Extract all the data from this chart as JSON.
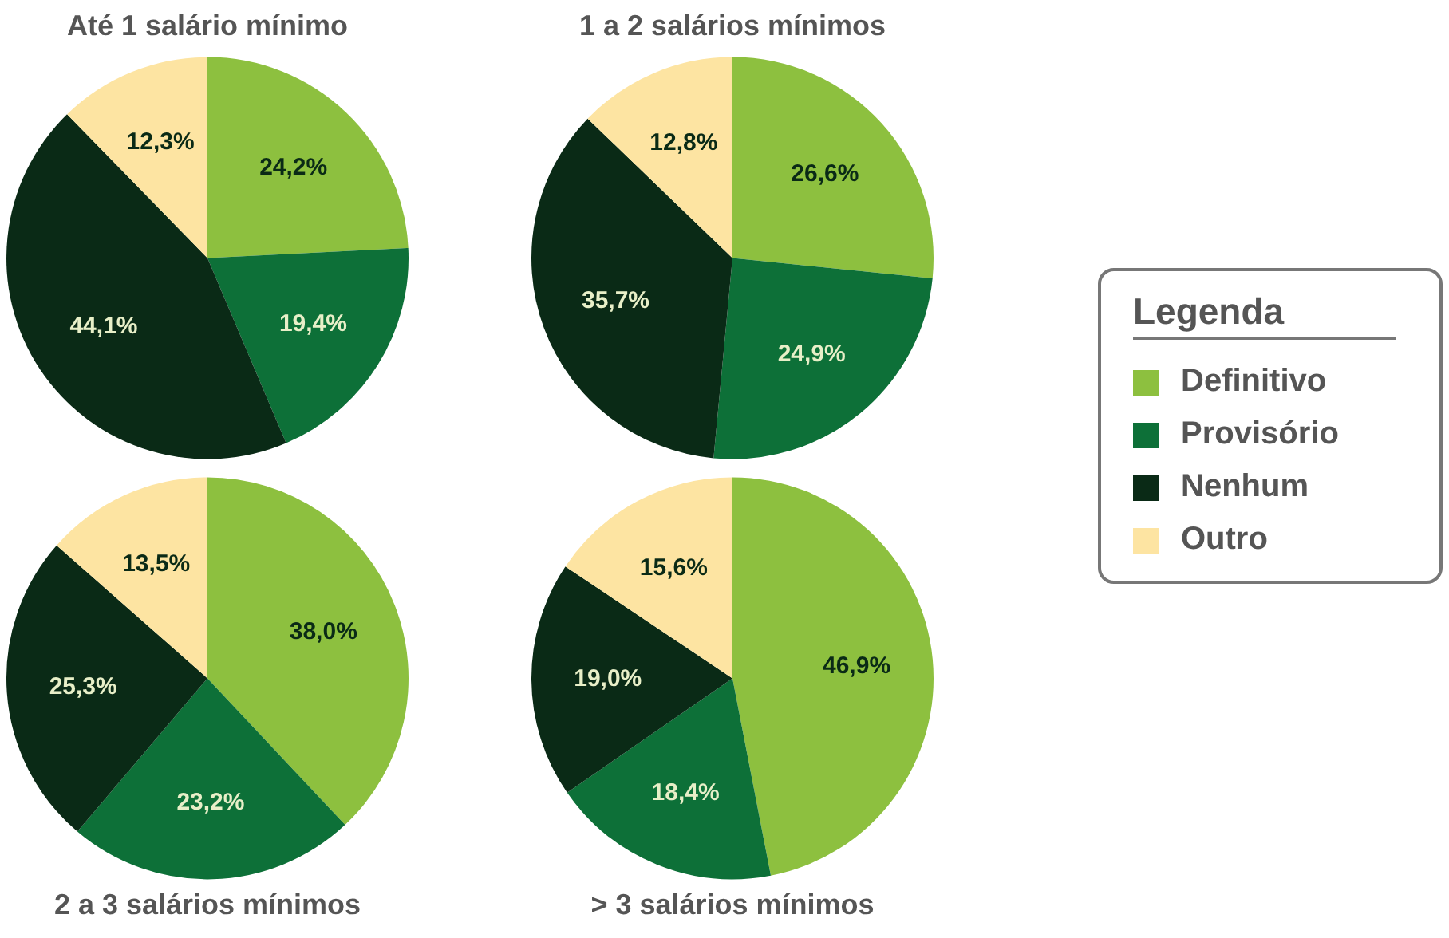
{
  "chart_data": [
    {
      "type": "pie",
      "title": "Até 1 salário mínimo",
      "categories": [
        "Definitivo",
        "Provisório",
        "Nenhum",
        "Outro"
      ],
      "values": [
        24.2,
        19.4,
        44.1,
        12.3
      ],
      "value_labels": [
        "24,2%",
        "19,4%",
        "44,1%",
        "12,3%"
      ],
      "colors": [
        "#8dc03f",
        "#0d7038",
        "#0a2a16",
        "#fde4a2"
      ],
      "legend": "right",
      "legend_title": "Legenda"
    },
    {
      "type": "pie",
      "title": "1 a 2 salários mínimos",
      "categories": [
        null,
        null,
        null,
        null
      ],
      "values": [
        26.6,
        24.9,
        35.7,
        12.8
      ],
      "value_labels": [
        "26,6%",
        "24,9%",
        "35,7%",
        "12,8%"
      ],
      "colors": [
        "#8dc03f",
        "#0d7038",
        "#0a2a16",
        "#fde4a2"
      ]
    },
    {
      "type": "pie",
      "title": "2 a 3 salários mínimos",
      "categories": [
        null,
        null,
        null,
        null
      ],
      "values": [
        38.0,
        23.2,
        25.3,
        13.5
      ],
      "value_labels": [
        "38,0%",
        "23,2%",
        "25,3%",
        "13,5%"
      ],
      "colors": [
        "#8dc03f",
        "#0d7038",
        "#0a2a16",
        "#fde4a2"
      ]
    },
    {
      "type": "pie",
      "title": "> 3 salários mínimos",
      "categories": [
        null,
        null,
        null,
        null
      ],
      "values": [
        46.9,
        18.4,
        19.0,
        15.6
      ],
      "value_labels": [
        "46,9%",
        "18,4%",
        "19,0%",
        "15,6%"
      ],
      "colors": [
        "#8dc03f",
        "#0d7038",
        "#0a2a16",
        "#fde4a2"
      ]
    }
  ]
}
